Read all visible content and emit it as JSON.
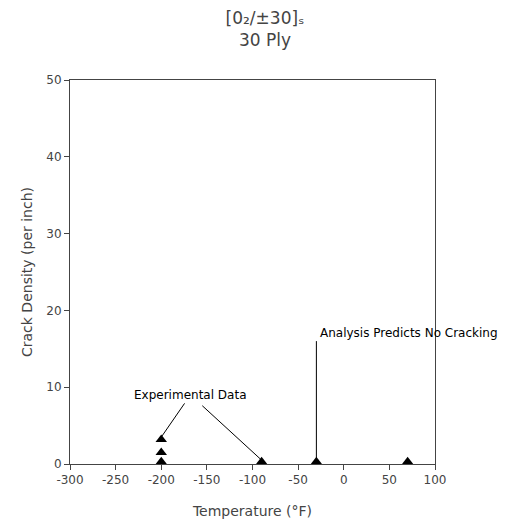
{
  "chart_data": {
    "type": "scatter",
    "title": "[0₂/±30]ₛ",
    "subtitle": "30 Ply",
    "xlabel": "Temperature (°F)",
    "ylabel": "Crack Density (per inch)",
    "x": [
      -200,
      -200,
      -200,
      -90,
      -30,
      70
    ],
    "values": [
      3.2,
      1.5,
      0.3,
      0.3,
      0.3,
      0.3
    ],
    "marker": "triangle-up",
    "color": "#000000",
    "xlim": [
      -300,
      100
    ],
    "ylim": [
      0,
      50
    ],
    "xticks": [
      -300,
      -250,
      -200,
      -150,
      -100,
      -50,
      0,
      50,
      100
    ],
    "yticks": [
      0,
      10,
      20,
      30,
      40,
      50
    ],
    "grid": false,
    "vertical_line": {
      "x": -30,
      "y": [
        0,
        16
      ],
      "color": "#000000"
    },
    "annotations": [
      {
        "text": "Analysis Predicts No Cracking",
        "x": -28,
        "y": 17,
        "align": "left"
      },
      {
        "text": "Experimental Data",
        "x": -168,
        "y": 9,
        "align": "center",
        "pointers": [
          {
            "x": -200,
            "y": 3.5
          },
          {
            "x": -90,
            "y": 0.5
          }
        ]
      }
    ]
  }
}
